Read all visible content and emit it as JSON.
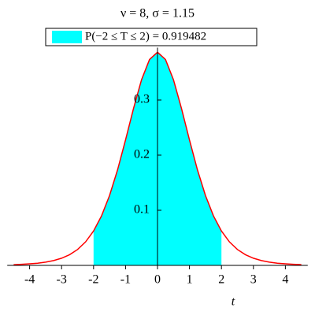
{
  "chart_data": {
    "type": "area",
    "title": "ν = 8, σ = 1.15",
    "legend": "P(−2 ≤ T ≤ 2) = 0.919482",
    "x_label": "t",
    "x": [
      -4.5,
      -4.25,
      -4,
      -3.75,
      -3.5,
      -3.25,
      -3,
      -2.75,
      -2.5,
      -2.25,
      -2,
      -1.75,
      -1.5,
      -1.25,
      -1,
      -0.75,
      -0.5,
      -0.25,
      0,
      0.25,
      0.5,
      0.75,
      1,
      1.25,
      1.5,
      1.75,
      2,
      2.25,
      2.5,
      2.75,
      3,
      3.25,
      3.5,
      3.75,
      4,
      4.25,
      4.5
    ],
    "values": [
      0.0013,
      0.0019,
      0.0028,
      0.004,
      0.0059,
      0.0088,
      0.013,
      0.0194,
      0.0288,
      0.0426,
      0.0624,
      0.0899,
      0.1268,
      0.1732,
      0.2276,
      0.2848,
      0.3367,
      0.3734,
      0.3867,
      0.3734,
      0.3367,
      0.2848,
      0.2276,
      0.1732,
      0.1268,
      0.0899,
      0.0624,
      0.0426,
      0.0288,
      0.0194,
      0.013,
      0.0088,
      0.0059,
      0.004,
      0.0028,
      0.0019,
      0.0013
    ],
    "color": "#ff0000",
    "shade": {
      "from": -2,
      "to": 2,
      "color": "#00ffff"
    },
    "xlim": [
      -4.7,
      4.7
    ],
    "ylim": [
      0,
      0.395
    ],
    "xticks": [
      -4,
      -3,
      -2,
      -1,
      0,
      1,
      2,
      3,
      4
    ],
    "yticks": [
      0.1,
      0.2,
      0.3
    ]
  }
}
